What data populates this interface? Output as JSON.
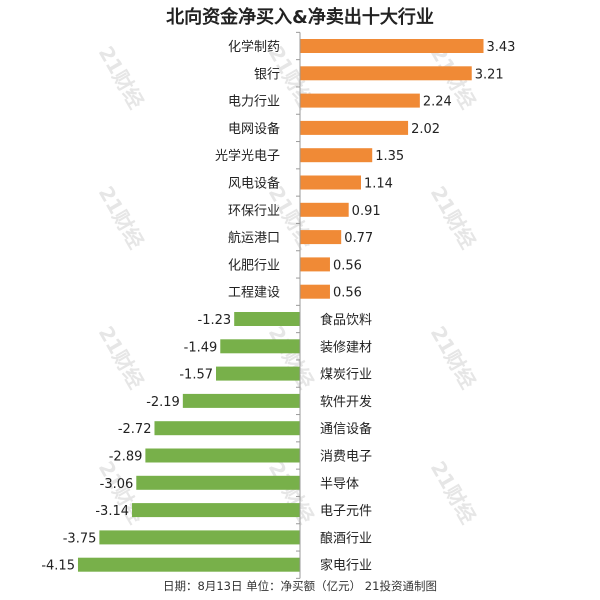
{
  "title": "北向资金净买入&净卖出十大行业",
  "footer": "日期：8月13日 单位：净买额（亿元） 21投资通制图",
  "watermark": "21财经",
  "colors": {
    "positive": "#f08a36",
    "negative": "#78b04a",
    "axis": "#9a9a9a",
    "text": "#222222"
  },
  "chart_data": {
    "type": "bar",
    "orientation": "horizontal",
    "title": "北向资金净买入&净卖出十大行业",
    "unit": "净买额（亿元）",
    "categories": [
      "化学制药",
      "银行",
      "电力行业",
      "电网设备",
      "光学光电子",
      "风电设备",
      "环保行业",
      "航运港口",
      "化肥行业",
      "工程建设",
      "食品饮料",
      "装修建材",
      "煤炭行业",
      "软件开发",
      "通信设备",
      "消费电子",
      "半导体",
      "电子元件",
      "酿酒行业",
      "家电行业"
    ],
    "values": [
      3.43,
      3.21,
      2.24,
      2.02,
      1.35,
      1.14,
      0.91,
      0.77,
      0.56,
      0.56,
      -1.23,
      -1.49,
      -1.57,
      -2.19,
      -2.72,
      -2.89,
      -3.06,
      -3.14,
      -3.75,
      -4.15
    ],
    "value_labels": [
      "3.43",
      "3.21",
      "2.24",
      "2.02",
      "1.35",
      "1.14",
      "0.91",
      "0.77",
      "0.56",
      "0.56",
      "-1.23",
      "-1.49",
      "-1.57",
      "-2.19",
      "-2.72",
      "-2.89",
      "-3.06",
      "-3.14",
      "-3.75",
      "-4.15"
    ]
  }
}
